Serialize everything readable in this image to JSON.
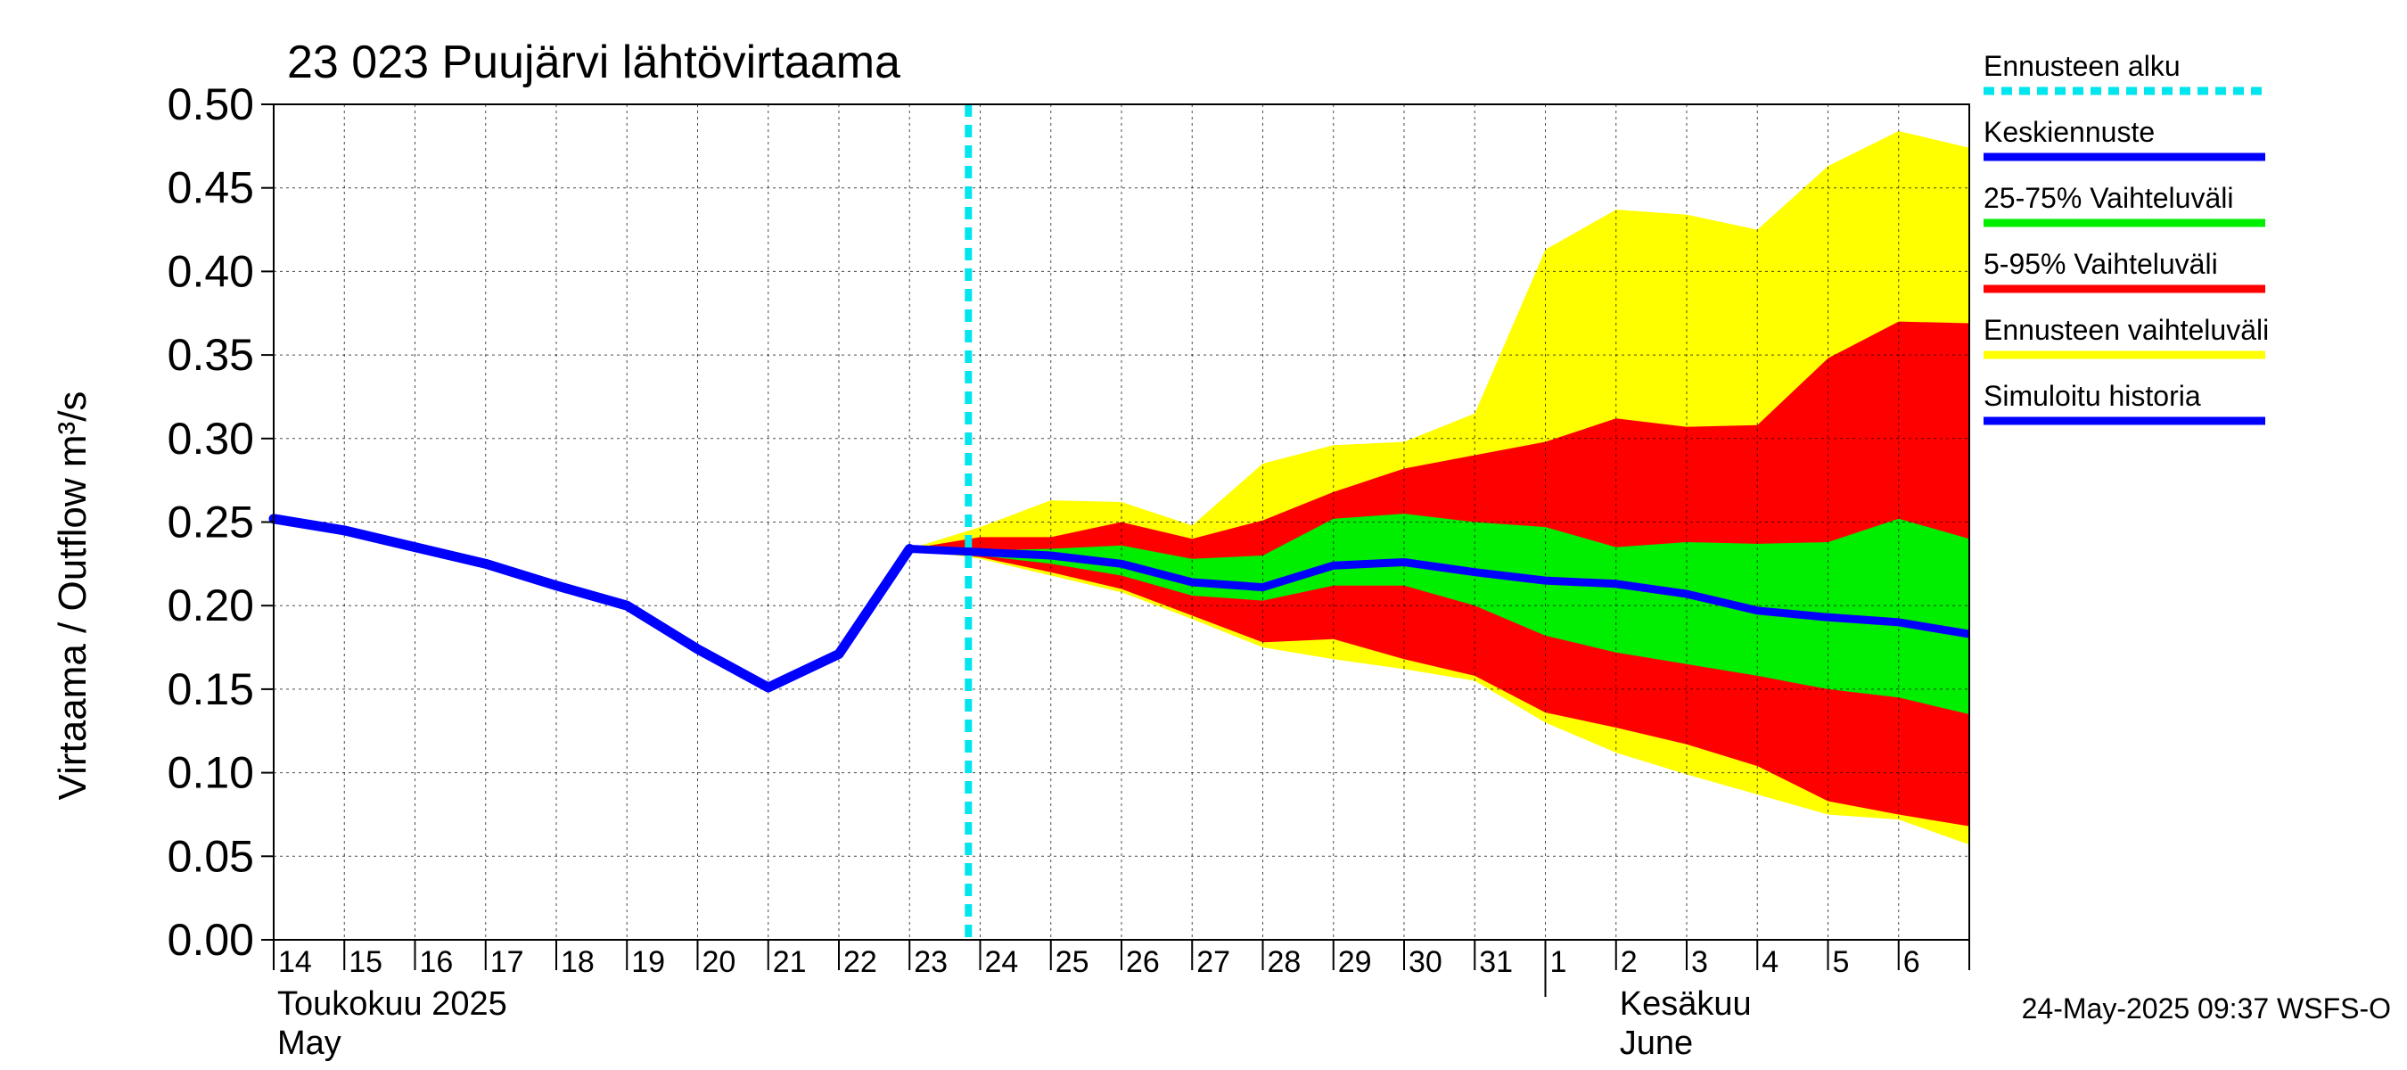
{
  "chart_data": {
    "type": "area",
    "title": "23 023 Puujärvi lähtövirtaama",
    "ylabel": "Virtaama / Outflow    m³/s",
    "ylim": [
      0,
      0.5
    ],
    "xlim": [
      "2025-05-14",
      "2025-06-07"
    ],
    "yticks": [
      "0.00",
      "0.05",
      "0.10",
      "0.15",
      "0.20",
      "0.25",
      "0.30",
      "0.35",
      "0.40",
      "0.45",
      "0.50"
    ],
    "xtick_labels": [
      "14",
      "15",
      "16",
      "17",
      "18",
      "19",
      "20",
      "21",
      "22",
      "23",
      "24",
      "25",
      "26",
      "27",
      "28",
      "29",
      "30",
      "31",
      "1",
      "2",
      "3",
      "4",
      "5",
      "6"
    ],
    "month_labels": [
      {
        "line1": "Toukokuu  2025",
        "line2": "May",
        "date": "2025-05-14"
      },
      {
        "line1": "Kesäkuu",
        "line2": "June",
        "date": "2025-06-02"
      }
    ],
    "grid": true,
    "legend_position": "right",
    "forecast_start": "2025-05-23T20:00",
    "legend": [
      {
        "label": "Ennusteen alku",
        "color": "#00e5ee",
        "style": "dashed"
      },
      {
        "label": "Keskiennuste",
        "color": "#0000ff",
        "style": "solid"
      },
      {
        "label": "25-75% Vaihteluväli",
        "color": "#00ee00",
        "style": "solid"
      },
      {
        "label": "5-95% Vaihteluväli",
        "color": "#ff0000",
        "style": "solid"
      },
      {
        "label": "Ennusteen vaihteluväli",
        "color": "#ffff00",
        "style": "solid"
      },
      {
        "label": "Simuloitu historia",
        "color": "#0000ff",
        "style": "solid"
      }
    ],
    "series": {
      "history": {
        "x": [
          "2025-05-14",
          "2025-05-15",
          "2025-05-16",
          "2025-05-17",
          "2025-05-18",
          "2025-05-19",
          "2025-05-20",
          "2025-05-21",
          "2025-05-22",
          "2025-05-23"
        ],
        "y": [
          0.252,
          0.245,
          0.235,
          0.225,
          0.212,
          0.2,
          0.174,
          0.151,
          0.171,
          0.234
        ]
      },
      "forecast_x": [
        "2025-05-23",
        "2025-05-24",
        "2025-05-25",
        "2025-05-26",
        "2025-05-27",
        "2025-05-28",
        "2025-05-29",
        "2025-05-30",
        "2025-05-31",
        "2025-06-01",
        "2025-06-02",
        "2025-06-03",
        "2025-06-04",
        "2025-06-05",
        "2025-06-06",
        "2025-06-07"
      ],
      "median": [
        0.234,
        0.232,
        0.23,
        0.225,
        0.214,
        0.211,
        0.224,
        0.226,
        0.22,
        0.215,
        0.213,
        0.207,
        0.197,
        0.193,
        0.19,
        0.183
      ],
      "p25": [
        0.234,
        0.23,
        0.225,
        0.218,
        0.206,
        0.203,
        0.212,
        0.212,
        0.2,
        0.182,
        0.172,
        0.165,
        0.158,
        0.15,
        0.145,
        0.135
      ],
      "p75": [
        0.234,
        0.233,
        0.234,
        0.236,
        0.228,
        0.23,
        0.252,
        0.255,
        0.25,
        0.247,
        0.235,
        0.238,
        0.237,
        0.238,
        0.252,
        0.24
      ],
      "p5": [
        0.234,
        0.229,
        0.22,
        0.21,
        0.194,
        0.178,
        0.18,
        0.168,
        0.158,
        0.136,
        0.127,
        0.117,
        0.104,
        0.083,
        0.075,
        0.068
      ],
      "p95": [
        0.234,
        0.241,
        0.241,
        0.25,
        0.24,
        0.251,
        0.268,
        0.282,
        0.29,
        0.298,
        0.312,
        0.307,
        0.308,
        0.348,
        0.37,
        0.369
      ],
      "min": [
        0.234,
        0.228,
        0.218,
        0.208,
        0.192,
        0.175,
        0.168,
        0.162,
        0.155,
        0.13,
        0.112,
        0.099,
        0.087,
        0.075,
        0.072,
        0.057
      ],
      "max": [
        0.234,
        0.247,
        0.263,
        0.262,
        0.248,
        0.285,
        0.296,
        0.298,
        0.315,
        0.413,
        0.437,
        0.434,
        0.425,
        0.463,
        0.484,
        0.474
      ]
    }
  },
  "footer": {
    "timestamp": "24-May-2025 09:37 WSFS-O"
  }
}
